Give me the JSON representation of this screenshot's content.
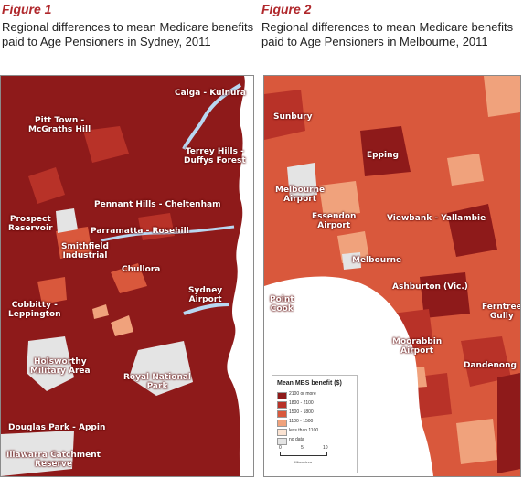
{
  "figure1": {
    "label": "Figure 1",
    "caption": "Regional differences to mean Medicare benefits paid to Age Pensioners in Sydney, 2011",
    "places": [
      "Calga - Kulnura",
      "Pitt Town -\nMcGraths Hill",
      "Terrey Hills -\nDuffys Forest",
      "Pennant Hills - Cheltenham",
      "Prospect\nReservoir",
      "Parramatta - Rosehill",
      "Smithfield\nIndustrial",
      "Chullora",
      "Sydney\nAirport",
      "Cobbitty -\nLeppington",
      "Holsworthy\nMilitary Area",
      "Royal National\nPark",
      "Douglas Park - Appin",
      "Illawarra Catchment\nReserve"
    ]
  },
  "figure2": {
    "label": "Figure 2",
    "caption": "Regional differences to mean Medicare benefits paid to Age Pensioners in Melbourne, 2011",
    "places": [
      "Sunbury",
      "Epping",
      "Melbourne\nAirport",
      "Essendon\nAirport",
      "Viewbank - Yallambie",
      "Melbourne",
      "Ashburton (Vic.)",
      "Point\nCook",
      "Ferntree\nGully",
      "Moorabbin\nAirport",
      "Dandenong"
    ],
    "legend": {
      "title": "Mean MBS benefit ($)",
      "items": [
        {
          "label": "2100 or more",
          "color": "#8e1a1a"
        },
        {
          "label": "1800 - 2100",
          "color": "#b83228"
        },
        {
          "label": "1500 - 1800",
          "color": "#d9583c"
        },
        {
          "label": "1100 - 1500",
          "color": "#f0a27c"
        },
        {
          "label": "less than 1100",
          "color": "#fbe3d2"
        },
        {
          "label": "no data",
          "color": "#e4e4e4"
        }
      ],
      "scale": {
        "ticks": [
          "0",
          "5",
          "10"
        ],
        "unit": "Kilometres"
      }
    }
  },
  "colors": {
    "accent": "#b0282c",
    "water": "#ffffff",
    "river": "#b9d7f1",
    "no_data": "#e4e4e4"
  }
}
